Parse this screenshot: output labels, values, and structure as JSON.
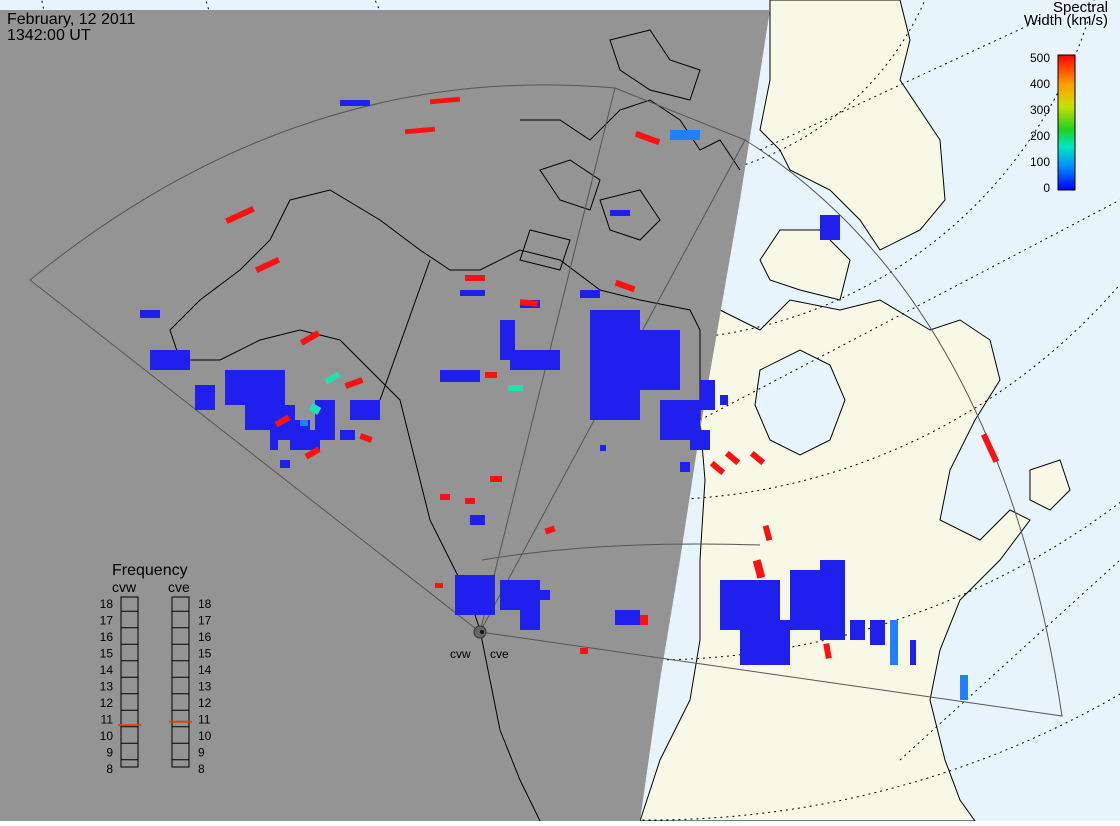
{
  "header": {
    "date": "February, 12 2011",
    "time": "1342:00 UT"
  },
  "colorbar": {
    "title_line1": "Spectral",
    "title_line2": "Width (km/s)",
    "ticks": [
      "500",
      "400",
      "300",
      "200",
      "100",
      "0"
    ],
    "range": [
      0,
      500
    ]
  },
  "frequency_panel": {
    "title": "Frequency",
    "left_label": "cvw",
    "right_label": "cve",
    "ticks": [
      "18",
      "17",
      "16",
      "15",
      "14",
      "13",
      "12",
      "11",
      "10",
      "9",
      "8"
    ],
    "cvw_value": 10.6,
    "cve_value": 10.8
  },
  "radars": {
    "west": "cvw",
    "east": "cve"
  },
  "colors": {
    "night_fill": "#949494",
    "day_land": "#f8f8e6",
    "day_ocean": "#e8f4fc",
    "coast": "#000000",
    "fov_outline": "#555555",
    "scatter_low": "#2020ee",
    "scatter_high": "#ff1010",
    "freq_marker": "#e04010"
  }
}
